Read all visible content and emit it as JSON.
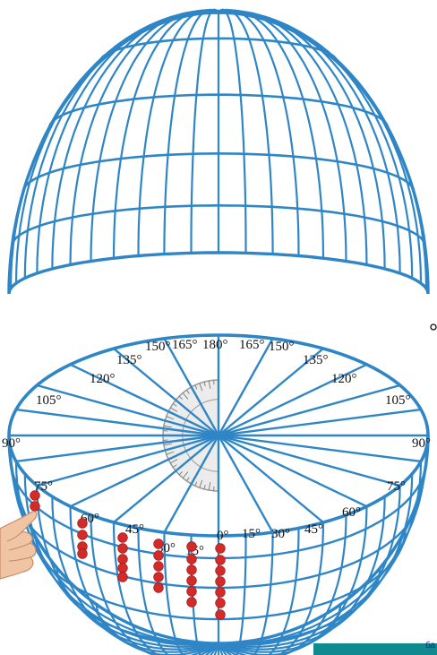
{
  "degree_labels": [
    "0°",
    "15°",
    "30°",
    "45°",
    "60°",
    "75°",
    "90°",
    "105°",
    "120°",
    "135°",
    "150°",
    "165°",
    "180°"
  ],
  "corner_tag": "ба",
  "colors": {
    "grid": "#2f86c6",
    "dots": "#d32a2a",
    "tag": "#0f8a8e",
    "protractor": "#9a9a9a"
  },
  "icons": {
    "hand": "pointing-hand-icon",
    "protractor": "protractor-icon"
  }
}
